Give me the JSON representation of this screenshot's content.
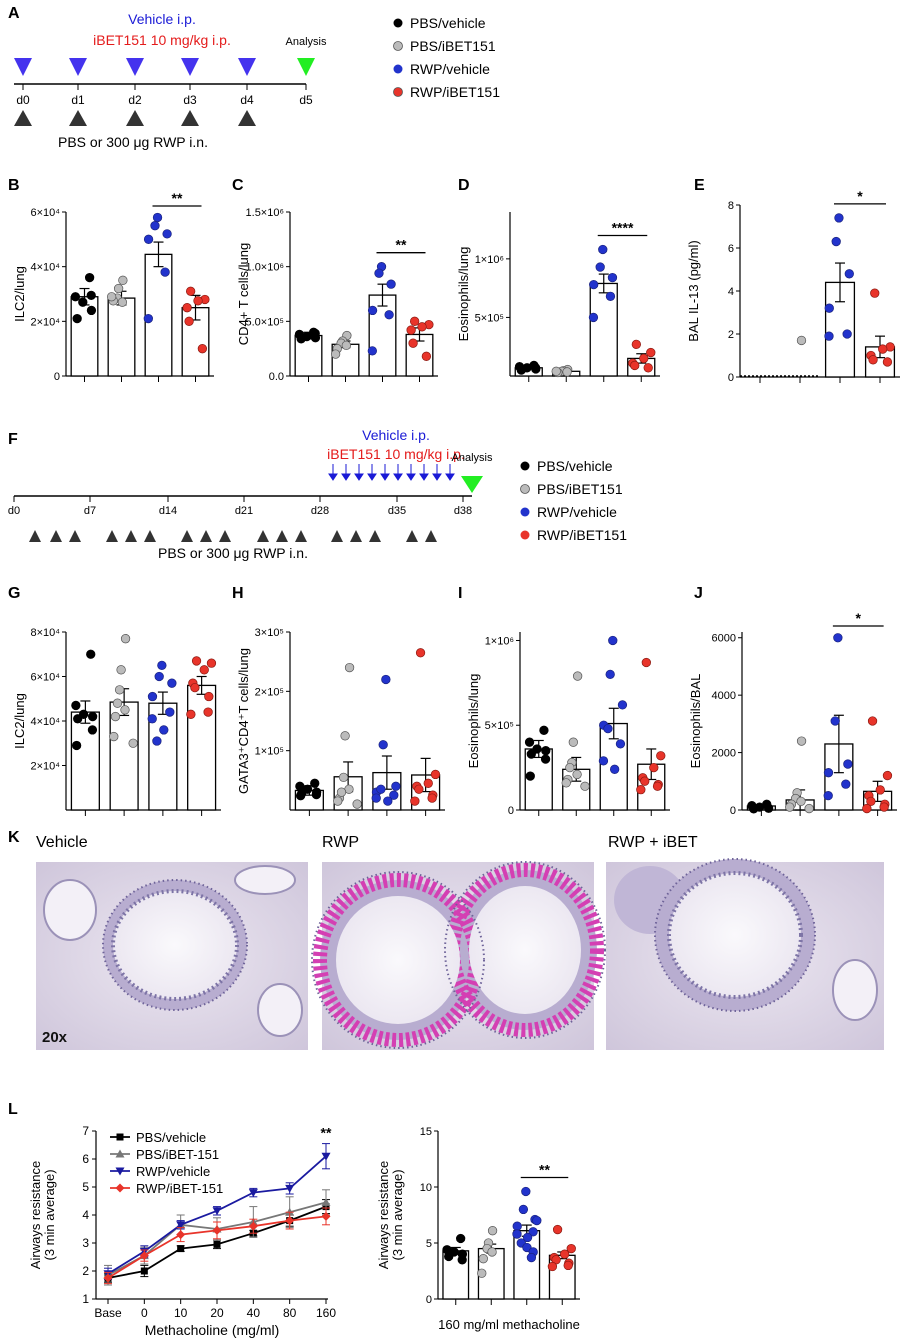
{
  "panels": {
    "A": {
      "letter": "A",
      "treatment_line1": "Vehicle i.p.",
      "treatment_line2": "iBET151 10 mg/kg i.p.",
      "analysis": "Analysis",
      "days": [
        "d0",
        "d1",
        "d2",
        "d3",
        "d4",
        "d5"
      ],
      "challenge": "PBS or 300 μg RWP i.n."
    },
    "F": {
      "letter": "F",
      "treatment_line1": "Vehicle i.p.",
      "treatment_line2": "iBET151 10 mg/kg i.p.",
      "analysis": "Analysis",
      "days": [
        "d0",
        "d7",
        "d14",
        "d21",
        "d28",
        "d35",
        "d38"
      ],
      "challenge": "PBS or 300 μg RWP i.n."
    },
    "K": {
      "letter": "K",
      "labels": [
        "Vehicle",
        "RWP",
        "RWP + iBET"
      ],
      "magnification": "20x"
    },
    "L": {
      "letter": "L"
    }
  },
  "legend_groups": [
    "PBS/vehicle",
    "PBS/iBET151",
    "RWP/vehicle",
    "RWP/iBET151"
  ],
  "colors": {
    "pbs_vehicle": "#000000",
    "pbs_ibet": "#bbbbbb",
    "rwp_vehicle": "#2233cc",
    "rwp_ibet": "#e8342a",
    "vehicle_text": "#1a1ad6",
    "ibet_text": "#e41b1b",
    "analysis_marker": "#22ee22",
    "dark_marker": "#333333"
  },
  "chart_data": [
    {
      "id": "B",
      "type": "bar",
      "ylabel": "ILC2/lung",
      "yticks": [
        "0",
        "2×10⁴",
        "4×10⁴",
        "6×10⁴"
      ],
      "ylim": [
        0,
        60000
      ],
      "means": [
        29000,
        28500,
        44500,
        25000
      ],
      "sem": [
        3000,
        2500,
        4500,
        4500
      ],
      "points": [
        [
          36000,
          29000,
          27000,
          24000,
          21000,
          29500
        ],
        [
          35000,
          32000,
          28500,
          27000,
          27500,
          29000
        ],
        [
          58000,
          55000,
          52000,
          50000,
          38000,
          21000
        ],
        [
          31000,
          28000,
          27500,
          25000,
          20000,
          10000
        ]
      ],
      "significance": [
        {
          "from": 2,
          "to": 3,
          "label": "**"
        }
      ]
    },
    {
      "id": "C",
      "type": "bar",
      "ylabel": "CD4+ T cells/lung",
      "yticks": [
        "0.0",
        "5.0×10⁵",
        "1.0×10⁶",
        "1.5×10⁶"
      ],
      "ylim": [
        0,
        1500000
      ],
      "means": [
        370000,
        290000,
        740000,
        380000
      ],
      "sem": [
        30000,
        30000,
        100000,
        60000
      ],
      "points": [
        [
          400000,
          380000,
          360000,
          350000,
          340000,
          390000
        ],
        [
          370000,
          320000,
          300000,
          280000,
          250000,
          200000
        ],
        [
          1000000,
          940000,
          840000,
          600000,
          560000,
          230000
        ],
        [
          500000,
          470000,
          450000,
          420000,
          300000,
          180000
        ]
      ],
      "significance": [
        {
          "from": 2,
          "to": 3,
          "label": "**"
        }
      ]
    },
    {
      "id": "D",
      "type": "bar",
      "ylabel": "Eosinophils/lung",
      "yticks": [
        "5×10⁵",
        "1×10⁶"
      ],
      "ytick_values": [
        500000,
        1000000
      ],
      "ylim": [
        0,
        1400000
      ],
      "means": [
        70000,
        40000,
        790000,
        150000
      ],
      "sem": [
        10000,
        8000,
        80000,
        40000
      ],
      "points": [
        [
          90000,
          80000,
          70000,
          60000,
          50000,
          70000
        ],
        [
          55000,
          45000,
          40000,
          35000,
          30000,
          40000
        ],
        [
          1080000,
          930000,
          840000,
          780000,
          680000,
          500000
        ],
        [
          270000,
          200000,
          150000,
          110000,
          90000,
          70000
        ]
      ],
      "significance": [
        {
          "from": 2,
          "to": 3,
          "label": "****"
        }
      ]
    },
    {
      "id": "E",
      "type": "bar",
      "ylabel": "BAL IL-13 (pg/ml)",
      "yticks": [
        "0",
        "2",
        "4",
        "6",
        "8"
      ],
      "ylim": [
        0,
        8
      ],
      "means": [
        0,
        0,
        4.4,
        1.4
      ],
      "sem": [
        0,
        0,
        0.9,
        0.5
      ],
      "points": [
        [],
        [
          1.7
        ],
        [
          7.4,
          6.3,
          4.8,
          3.2,
          2.0,
          1.9
        ],
        [
          3.9,
          1.4,
          1.3,
          1.0,
          0.8,
          0.7
        ]
      ],
      "significance": [
        {
          "from": 2,
          "to": 3,
          "label": "*"
        }
      ]
    },
    {
      "id": "G",
      "type": "bar",
      "ylabel": "ILC2/lung",
      "yticks": [
        "2×10⁴",
        "4×10⁴",
        "6×10⁴",
        "8×10⁴"
      ],
      "ytick_values": [
        20000,
        40000,
        60000,
        80000
      ],
      "ylim": [
        0,
        80000
      ],
      "means": [
        44000,
        48500,
        48000,
        56000
      ],
      "sem": [
        5000,
        6000,
        5000,
        4000
      ],
      "points": [
        [
          70000,
          47000,
          43000,
          42000,
          41000,
          36000,
          29000
        ],
        [
          77000,
          63000,
          54000,
          45000,
          42000,
          33000,
          30000,
          48000
        ],
        [
          65000,
          60000,
          57000,
          51000,
          44000,
          41000,
          36000,
          31000
        ],
        [
          67000,
          66000,
          63000,
          57000,
          55000,
          51000,
          44000,
          43000
        ]
      ],
      "significance": []
    },
    {
      "id": "H",
      "type": "bar",
      "ylabel": "GATA3⁺CD4⁺T cells/lung",
      "yticks": [
        "1×10⁵",
        "2×10⁵",
        "3×10⁵"
      ],
      "ytick_values": [
        100000,
        200000,
        300000
      ],
      "ylim": [
        0,
        300000
      ],
      "means": [
        33000,
        56000,
        63000,
        59000
      ],
      "sem": [
        8000,
        25000,
        28000,
        28000
      ],
      "points": [
        [
          45000,
          40000,
          35000,
          30000,
          28000,
          26000,
          24000
        ],
        [
          240000,
          125000,
          55000,
          35000,
          20000,
          15000,
          10000,
          30000
        ],
        [
          220000,
          110000,
          40000,
          30000,
          25000,
          20000,
          15000,
          35000
        ],
        [
          265000,
          60000,
          45000,
          40000,
          35000,
          25000,
          20000,
          15000
        ]
      ],
      "significance": []
    },
    {
      "id": "I",
      "type": "bar",
      "ylabel": "Eosinophils/lung",
      "yticks": [
        "0",
        "5×10⁵",
        "1×10⁶"
      ],
      "ytick_values": [
        0,
        500000,
        1000000
      ],
      "ylim": [
        0,
        1050000
      ],
      "means": [
        360000,
        240000,
        510000,
        270000
      ],
      "sem": [
        50000,
        70000,
        90000,
        90000
      ],
      "points": [
        [
          470000,
          400000,
          360000,
          350000,
          330000,
          300000,
          200000
        ],
        [
          790000,
          400000,
          280000,
          210000,
          180000,
          160000,
          140000,
          250000
        ],
        [
          1000000,
          800000,
          620000,
          500000,
          390000,
          290000,
          240000,
          480000
        ],
        [
          870000,
          320000,
          250000,
          190000,
          170000,
          150000,
          140000,
          120000
        ]
      ],
      "significance": []
    },
    {
      "id": "J",
      "type": "bar",
      "ylabel": "Eosinophils/BAL",
      "yticks": [
        "0",
        "2000",
        "4000",
        "6000"
      ],
      "ytick_values": [
        0,
        2000,
        4000,
        6000
      ],
      "ylim": [
        0,
        6200
      ],
      "means": [
        140,
        350,
        2300,
        650
      ],
      "sem": [
        40,
        350,
        1000,
        350
      ],
      "points": [
        [
          200,
          150,
          100,
          60,
          40
        ],
        [
          2400,
          600,
          400,
          300,
          200,
          100,
          50
        ],
        [
          6000,
          3100,
          1600,
          1300,
          900,
          500
        ],
        [
          3100,
          1200,
          700,
          500,
          300,
          200,
          100,
          50
        ]
      ],
      "significance": [
        {
          "from": 2,
          "to": 3,
          "label": "*"
        }
      ]
    },
    {
      "id": "L-left",
      "type": "line",
      "ylabel": [
        "Airways resistance",
        "(3 min average)"
      ],
      "xlabel": "Methacholine (mg/ml)",
      "x": [
        "Base",
        "0",
        "10",
        "20",
        "40",
        "80",
        "160"
      ],
      "yticks": [
        "1",
        "2",
        "3",
        "4",
        "5",
        "6",
        "7"
      ],
      "ylim": [
        1,
        7
      ],
      "series": [
        {
          "name": "PBS/vehicle",
          "values": [
            1.75,
            2.0,
            2.8,
            2.95,
            3.35,
            3.8,
            4.3
          ],
          "err": [
            0.15,
            0.2,
            0.1,
            0.15,
            0.1,
            0.2,
            0.25
          ]
        },
        {
          "name": "PBS/iBET-151",
          "values": [
            1.85,
            2.55,
            3.65,
            3.5,
            3.75,
            4.1,
            4.45
          ],
          "err": [
            0.35,
            0.3,
            0.35,
            0.4,
            0.55,
            0.55,
            0.45
          ]
        },
        {
          "name": "RWP/vehicle",
          "values": [
            1.9,
            2.7,
            3.65,
            4.15,
            4.8,
            4.95,
            6.1
          ],
          "err": [
            0.2,
            0.2,
            0.15,
            0.15,
            0.15,
            0.2,
            0.45
          ]
        },
        {
          "name": "RWP/iBET-151",
          "values": [
            1.75,
            2.55,
            3.3,
            3.45,
            3.6,
            3.8,
            3.95
          ],
          "err": [
            0.2,
            0.2,
            0.25,
            0.3,
            0.25,
            0.3,
            0.3
          ]
        }
      ],
      "annotation": {
        "x": "160",
        "label": "**"
      }
    },
    {
      "id": "L-right",
      "type": "bar",
      "ylabel": [
        "Airways resistance",
        "(3 min average)"
      ],
      "xlabel": "160 mg/ml methacholine",
      "yticks": [
        "0",
        "5",
        "10",
        "15"
      ],
      "ytick_values": [
        0,
        5,
        10,
        15
      ],
      "ylim": [
        0,
        15
      ],
      "means": [
        4.3,
        4.5,
        6.1,
        3.9
      ],
      "sem": [
        0.3,
        0.4,
        0.5,
        0.3
      ],
      "points": [
        [
          5.4,
          4.4,
          4.2,
          4.0,
          3.8,
          3.5
        ],
        [
          6.1,
          5.0,
          4.5,
          4.2,
          3.6,
          2.3
        ],
        [
          9.6,
          8.0,
          7.1,
          6.5,
          6.0,
          5.8,
          5.5,
          5.0,
          4.6,
          4.2,
          3.7,
          7.0
        ],
        [
          6.2,
          4.5,
          4.0,
          3.7,
          3.5,
          3.2,
          3.0,
          2.9
        ]
      ],
      "significance": [
        {
          "from": 2,
          "to": 3,
          "label": "**"
        }
      ]
    }
  ]
}
